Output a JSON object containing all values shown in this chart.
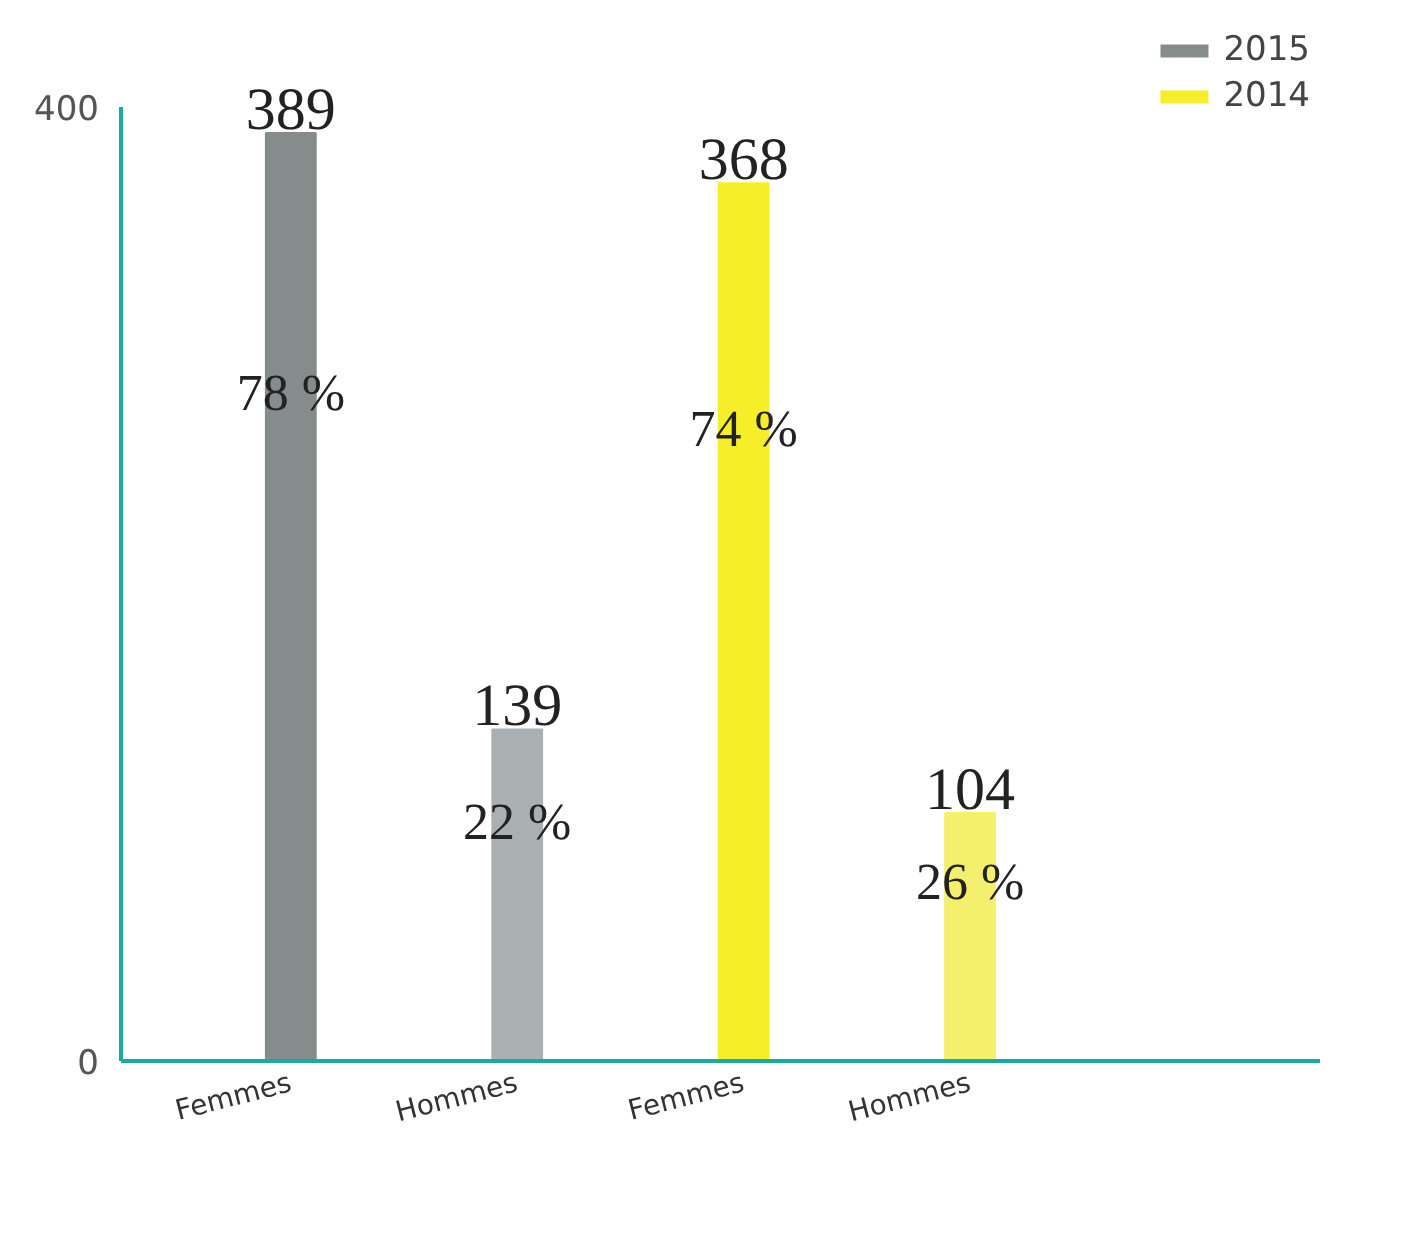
{
  "chart_data": {
    "type": "bar",
    "categories": [
      "Femmes",
      "Hommes",
      "Femmes",
      "Hommes"
    ],
    "series": [
      {
        "name": "2015",
        "color": "#868b8c",
        "colors": [
          "#868b8c",
          "#aab0b1",
          null,
          null
        ],
        "values": [
          389,
          139,
          null,
          null
        ]
      },
      {
        "name": "2014",
        "color": "#f5ee28",
        "colors": [
          null,
          null,
          "#f5ee28",
          "#f5ef6e"
        ],
        "values": [
          null,
          null,
          368,
          104
        ]
      }
    ],
    "annotations": [
      "78 %",
      "22 %",
      "74 %",
      "26 %"
    ],
    "ylim": [
      0,
      400
    ],
    "yticks": [
      0,
      400
    ],
    "data_labels": true,
    "grid": false,
    "legend": "top right"
  }
}
